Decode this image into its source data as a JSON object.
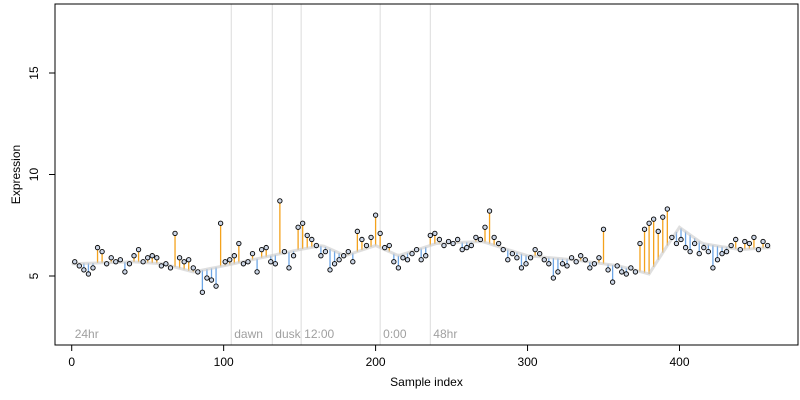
{
  "chart_data": {
    "type": "scatter",
    "title": "",
    "xlabel": "Sample index",
    "ylabel": "Expression",
    "xlim": [
      -11,
      478
    ],
    "ylim": [
      1.6,
      18.4
    ],
    "x_ticks": [
      "0",
      "100",
      "200",
      "300",
      "400"
    ],
    "x_tick_values": [
      0,
      100,
      200,
      300,
      400
    ],
    "y_ticks": [
      "5",
      "10",
      "15"
    ],
    "y_tick_values": [
      5,
      10,
      15
    ],
    "grid": false,
    "baseline_description": "smoothed trend; points above it joined by orange lines, below by blue lines",
    "colors": {
      "above": "#f4a21c",
      "below": "#6ea6e6",
      "point_fill": "#ccd6e6",
      "point_stroke": "#000000",
      "phase_line": "#dcdcdc",
      "phase_label": "#a0a0a0",
      "frame": "#000000"
    },
    "phases": [
      {
        "label": "24hr",
        "x": 0
      },
      {
        "label": "dawn",
        "x": 105
      },
      {
        "label": "dusk",
        "x": 132
      },
      {
        "label": "12:00",
        "x": 151
      },
      {
        "label": "0:00",
        "x": 203
      },
      {
        "label": "48hr",
        "x": 236
      }
    ],
    "trend": [
      [
        0,
        5.6
      ],
      [
        40,
        5.7
      ],
      [
        60,
        5.6
      ],
      [
        80,
        5.2
      ],
      [
        100,
        5.5
      ],
      [
        125,
        5.9
      ],
      [
        150,
        6.3
      ],
      [
        165,
        6.5
      ],
      [
        180,
        6.0
      ],
      [
        200,
        6.5
      ],
      [
        215,
        6.0
      ],
      [
        240,
        6.6
      ],
      [
        270,
        6.7
      ],
      [
        300,
        6.0
      ],
      [
        330,
        5.8
      ],
      [
        360,
        5.5
      ],
      [
        380,
        5.1
      ],
      [
        392,
        6.5
      ],
      [
        400,
        7.4
      ],
      [
        415,
        6.6
      ],
      [
        440,
        6.3
      ],
      [
        460,
        6.4
      ]
    ],
    "series": [
      {
        "x": [
          2,
          5,
          8,
          11,
          14,
          17,
          20,
          23,
          26,
          29,
          32,
          35,
          38,
          41,
          44,
          47,
          50,
          53,
          56,
          59,
          62,
          65,
          68,
          71,
          74,
          77,
          80,
          83,
          86,
          89,
          92,
          95,
          98,
          101,
          104,
          107,
          110,
          113,
          116,
          119,
          122,
          125,
          128,
          131,
          134,
          137,
          140,
          143,
          146,
          149,
          152,
          155,
          158,
          161,
          164,
          167,
          170,
          173,
          176,
          179,
          182,
          185,
          188,
          191,
          194,
          197,
          200,
          203,
          206,
          209,
          212,
          215,
          218,
          221,
          224,
          227,
          230,
          233,
          236,
          239,
          242,
          245,
          248,
          251,
          254,
          257,
          260,
          263,
          266,
          269,
          272,
          275,
          278,
          281,
          284,
          287,
          290,
          293,
          296,
          299,
          302,
          305,
          308,
          311,
          314,
          317,
          320,
          323,
          326,
          329,
          332,
          335,
          338,
          341,
          344,
          347,
          350,
          353,
          356,
          359,
          362,
          365,
          368,
          371,
          374,
          377,
          380,
          383,
          386,
          389,
          392,
          395,
          398,
          401,
          404,
          407,
          410,
          413,
          416,
          419,
          422,
          425,
          428,
          431,
          434,
          437,
          440,
          443,
          446,
          449,
          452,
          455,
          458
        ],
        "y": [
          5.7,
          5.5,
          5.3,
          5.1,
          5.4,
          6.4,
          6.2,
          5.6,
          5.9,
          5.7,
          5.8,
          5.2,
          5.6,
          6.0,
          6.3,
          5.7,
          5.9,
          6.0,
          5.9,
          5.5,
          5.6,
          5.4,
          7.1,
          5.9,
          5.7,
          5.8,
          5.4,
          5.2,
          4.2,
          4.9,
          4.8,
          4.5,
          7.6,
          5.7,
          5.8,
          6.0,
          6.6,
          5.6,
          5.7,
          6.1,
          5.2,
          6.3,
          6.4,
          5.7,
          5.6,
          8.7,
          6.2,
          5.4,
          6.0,
          7.4,
          7.6,
          7.0,
          6.8,
          6.5,
          6.0,
          6.2,
          5.3,
          5.6,
          5.8,
          6.0,
          6.2,
          5.7,
          7.2,
          6.8,
          6.5,
          6.9,
          8.0,
          7.1,
          6.4,
          6.5,
          5.7,
          5.4,
          5.9,
          5.8,
          6.1,
          6.3,
          5.8,
          6.0,
          7.0,
          7.1,
          6.8,
          6.5,
          6.7,
          6.6,
          6.8,
          6.3,
          6.4,
          6.5,
          6.9,
          6.8,
          7.4,
          8.2,
          6.9,
          6.6,
          6.3,
          5.8,
          6.1,
          5.9,
          5.4,
          5.6,
          5.9,
          6.3,
          6.1,
          5.8,
          5.6,
          4.9,
          5.2,
          5.6,
          5.5,
          5.9,
          5.7,
          6.0,
          5.8,
          5.4,
          5.6,
          5.9,
          7.3,
          5.3,
          4.7,
          5.5,
          5.2,
          5.1,
          5.4,
          5.2,
          6.6,
          7.3,
          7.6,
          7.8,
          7.2,
          7.9,
          8.3,
          6.9,
          6.6,
          6.8,
          6.4,
          6.2,
          6.6,
          6.1,
          6.4,
          6.2,
          5.4,
          5.8,
          6.1,
          6.2,
          6.5,
          6.8,
          6.3,
          6.7,
          6.6,
          6.9,
          6.3,
          6.7,
          6.5
        ]
      }
    ]
  }
}
